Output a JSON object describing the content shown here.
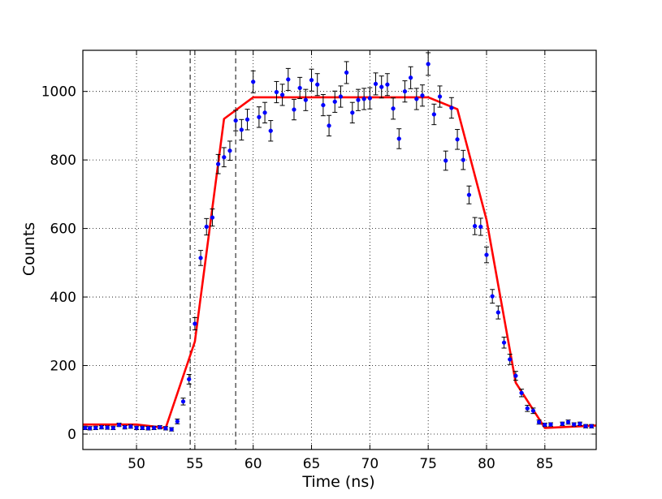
{
  "chart_data": {
    "type": "scatter",
    "title": "",
    "xlabel": "Time (ns)",
    "ylabel": "Counts",
    "xlim": [
      45.4,
      89.4
    ],
    "ylim": [
      -45,
      1120
    ],
    "x_ticks": [
      50,
      55,
      60,
      65,
      70,
      75,
      80,
      85
    ],
    "y_ticks": [
      0,
      200,
      400,
      600,
      800,
      1000
    ],
    "grid": true,
    "grid_style": "dotted",
    "legend": "none",
    "colors": {
      "data": "#0000ff",
      "errorbar": "#000000",
      "fit": "#ff0000",
      "markers": "#333333"
    },
    "vertical_markers": [
      54.6,
      58.5
    ],
    "series": [
      {
        "kind": "points_with_error",
        "points": [
          {
            "x": 45.6,
            "y": 18,
            "e": 5
          },
          {
            "x": 46.0,
            "y": 17,
            "e": 5
          },
          {
            "x": 46.5,
            "y": 18,
            "e": 5
          },
          {
            "x": 47.0,
            "y": 20,
            "e": 5
          },
          {
            "x": 47.5,
            "y": 19,
            "e": 5
          },
          {
            "x": 48.0,
            "y": 18,
            "e": 5
          },
          {
            "x": 48.5,
            "y": 27,
            "e": 5
          },
          {
            "x": 49.0,
            "y": 20,
            "e": 5
          },
          {
            "x": 49.5,
            "y": 22,
            "e": 5
          },
          {
            "x": 50.0,
            "y": 18,
            "e": 5
          },
          {
            "x": 50.5,
            "y": 18,
            "e": 5
          },
          {
            "x": 51.0,
            "y": 17,
            "e": 5
          },
          {
            "x": 51.5,
            "y": 18,
            "e": 5
          },
          {
            "x": 52.0,
            "y": 20,
            "e": 5
          },
          {
            "x": 52.5,
            "y": 17,
            "e": 5
          },
          {
            "x": 53.0,
            "y": 14,
            "e": 5
          },
          {
            "x": 53.5,
            "y": 37,
            "e": 7
          },
          {
            "x": 54.0,
            "y": 95,
            "e": 10
          },
          {
            "x": 54.5,
            "y": 160,
            "e": 14
          },
          {
            "x": 55.0,
            "y": 322,
            "e": 18
          },
          {
            "x": 55.5,
            "y": 514,
            "e": 22
          },
          {
            "x": 56.0,
            "y": 605,
            "e": 24
          },
          {
            "x": 56.5,
            "y": 632,
            "e": 25
          },
          {
            "x": 57.0,
            "y": 788,
            "e": 28
          },
          {
            "x": 57.5,
            "y": 808,
            "e": 28
          },
          {
            "x": 58.0,
            "y": 827,
            "e": 28
          },
          {
            "x": 58.5,
            "y": 915,
            "e": 30
          },
          {
            "x": 59.0,
            "y": 888,
            "e": 30
          },
          {
            "x": 59.5,
            "y": 918,
            "e": 30
          },
          {
            "x": 60.0,
            "y": 1028,
            "e": 32
          },
          {
            "x": 60.5,
            "y": 925,
            "e": 30
          },
          {
            "x": 61.0,
            "y": 938,
            "e": 30
          },
          {
            "x": 61.5,
            "y": 885,
            "e": 30
          },
          {
            "x": 62.0,
            "y": 998,
            "e": 31
          },
          {
            "x": 62.5,
            "y": 990,
            "e": 31
          },
          {
            "x": 63.0,
            "y": 1035,
            "e": 32
          },
          {
            "x": 63.5,
            "y": 947,
            "e": 30
          },
          {
            "x": 64.0,
            "y": 1010,
            "e": 31
          },
          {
            "x": 64.5,
            "y": 975,
            "e": 31
          },
          {
            "x": 65.0,
            "y": 1033,
            "e": 32
          },
          {
            "x": 65.5,
            "y": 1020,
            "e": 32
          },
          {
            "x": 66.0,
            "y": 960,
            "e": 31
          },
          {
            "x": 66.5,
            "y": 900,
            "e": 30
          },
          {
            "x": 67.0,
            "y": 970,
            "e": 31
          },
          {
            "x": 67.5,
            "y": 985,
            "e": 31
          },
          {
            "x": 68.0,
            "y": 1055,
            "e": 32
          },
          {
            "x": 68.5,
            "y": 938,
            "e": 30
          },
          {
            "x": 69.0,
            "y": 975,
            "e": 31
          },
          {
            "x": 69.5,
            "y": 978,
            "e": 31
          },
          {
            "x": 70.0,
            "y": 980,
            "e": 31
          },
          {
            "x": 70.5,
            "y": 1022,
            "e": 32
          },
          {
            "x": 71.0,
            "y": 1013,
            "e": 32
          },
          {
            "x": 71.5,
            "y": 1020,
            "e": 32
          },
          {
            "x": 72.0,
            "y": 950,
            "e": 31
          },
          {
            "x": 72.5,
            "y": 862,
            "e": 29
          },
          {
            "x": 73.0,
            "y": 1000,
            "e": 31
          },
          {
            "x": 73.5,
            "y": 1040,
            "e": 32
          },
          {
            "x": 74.0,
            "y": 978,
            "e": 31
          },
          {
            "x": 74.5,
            "y": 988,
            "e": 31
          },
          {
            "x": 75.0,
            "y": 1080,
            "e": 33
          },
          {
            "x": 75.5,
            "y": 933,
            "e": 30
          },
          {
            "x": 76.0,
            "y": 985,
            "e": 31
          },
          {
            "x": 76.5,
            "y": 798,
            "e": 28
          },
          {
            "x": 77.0,
            "y": 952,
            "e": 30
          },
          {
            "x": 77.5,
            "y": 860,
            "e": 29
          },
          {
            "x": 78.0,
            "y": 800,
            "e": 28
          },
          {
            "x": 78.5,
            "y": 698,
            "e": 26
          },
          {
            "x": 79.0,
            "y": 607,
            "e": 25
          },
          {
            "x": 79.5,
            "y": 605,
            "e": 25
          },
          {
            "x": 80.0,
            "y": 523,
            "e": 23
          },
          {
            "x": 80.5,
            "y": 402,
            "e": 20
          },
          {
            "x": 81.0,
            "y": 355,
            "e": 19
          },
          {
            "x": 81.5,
            "y": 267,
            "e": 16
          },
          {
            "x": 82.0,
            "y": 218,
            "e": 15
          },
          {
            "x": 82.5,
            "y": 170,
            "e": 13
          },
          {
            "x": 83.0,
            "y": 120,
            "e": 11
          },
          {
            "x": 83.5,
            "y": 75,
            "e": 9
          },
          {
            "x": 84.0,
            "y": 68,
            "e": 8
          },
          {
            "x": 84.5,
            "y": 35,
            "e": 6
          },
          {
            "x": 85.0,
            "y": 27,
            "e": 5
          },
          {
            "x": 85.5,
            "y": 28,
            "e": 5
          },
          {
            "x": 86.5,
            "y": 30,
            "e": 5
          },
          {
            "x": 87.0,
            "y": 35,
            "e": 6
          },
          {
            "x": 87.5,
            "y": 28,
            "e": 5
          },
          {
            "x": 88.0,
            "y": 30,
            "e": 5
          },
          {
            "x": 88.5,
            "y": 23,
            "e": 5
          },
          {
            "x": 89.0,
            "y": 23,
            "e": 5
          }
        ]
      },
      {
        "kind": "line",
        "x": [
          45.4,
          48.5,
          50.0,
          51.5,
          52.5,
          55.0,
          57.5,
          60.0,
          75.0,
          77.5,
          80.0,
          82.5,
          85.0,
          89.4
        ],
        "y": [
          28,
          28,
          28,
          22,
          18,
          270,
          920,
          983,
          983,
          948,
          625,
          150,
          18,
          25
        ]
      }
    ]
  }
}
